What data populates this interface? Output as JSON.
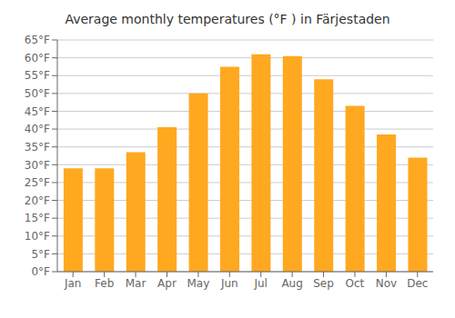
{
  "chart_data": {
    "type": "bar",
    "title": "Average monthly temperatures (°F ) in Färjestaden",
    "categories": [
      "Jan",
      "Feb",
      "Mar",
      "Apr",
      "May",
      "Jun",
      "Jul",
      "Aug",
      "Sep",
      "Oct",
      "Nov",
      "Dec"
    ],
    "values": [
      29,
      29,
      33.5,
      40.5,
      50,
      57.5,
      61,
      60.5,
      54,
      46.5,
      38.5,
      32
    ],
    "color": "#FFA820",
    "ylim": [
      0,
      65
    ],
    "yticks": [
      {
        "value": 0,
        "label": "0°F"
      },
      {
        "value": 5,
        "label": "5°F"
      },
      {
        "value": 10,
        "label": "10°F"
      },
      {
        "value": 15,
        "label": "15°F"
      },
      {
        "value": 20,
        "label": "20°F"
      },
      {
        "value": 25,
        "label": "25°F"
      },
      {
        "value": 30,
        "label": "30°F"
      },
      {
        "value": 35,
        "label": "35°F"
      },
      {
        "value": 40,
        "label": "40°F"
      },
      {
        "value": 45,
        "label": "45°F"
      },
      {
        "value": 50,
        "label": "50°F"
      },
      {
        "value": 55,
        "label": "55°F"
      },
      {
        "value": 60,
        "label": "60°F"
      },
      {
        "value": 65,
        "label": "65°F"
      }
    ],
    "grid": true
  }
}
